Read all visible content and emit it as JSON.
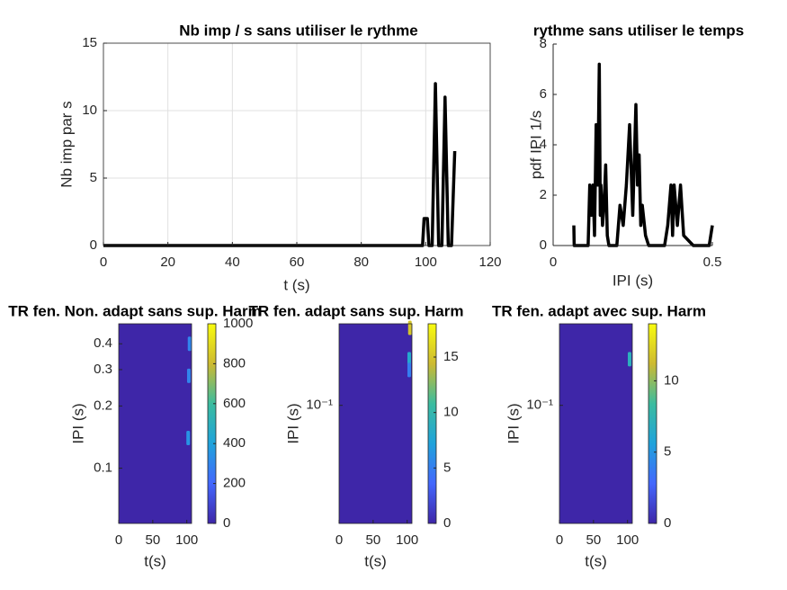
{
  "chart_data": [
    {
      "type": "line",
      "title": "Nb imp / s sans utiliser le rythme",
      "x_label": "t (s)",
      "y_label": "Nb imp par s",
      "x": [
        0,
        99,
        99.5,
        100.5,
        101,
        102,
        103,
        104,
        105,
        106,
        107,
        108,
        109
      ],
      "values": [
        0,
        0,
        2,
        2,
        0,
        0,
        12,
        0,
        0,
        11,
        0,
        0,
        7
      ],
      "color": "#000000",
      "xlim": [
        0,
        120
      ],
      "xticks": [
        0,
        20,
        40,
        60,
        80,
        100,
        120
      ],
      "ylim": [
        0,
        15
      ],
      "yticks": [
        0,
        5,
        10,
        15
      ],
      "grid": true
    },
    {
      "type": "line",
      "title": "rythme sans utiliser le temps",
      "x_label": "IPI (s)",
      "y_label": "pdf IPI 1/s",
      "x": [
        0.065,
        0.066,
        0.07,
        0.071,
        0.1,
        0.11,
        0.115,
        0.12,
        0.125,
        0.13,
        0.135,
        0.14,
        0.145,
        0.148,
        0.15,
        0.155,
        0.16,
        0.165,
        0.17,
        0.175,
        0.2,
        0.21,
        0.22,
        0.23,
        0.24,
        0.25,
        0.26,
        0.265,
        0.27,
        0.275,
        0.28,
        0.29,
        0.3,
        0.32,
        0.35,
        0.36,
        0.37,
        0.375,
        0.38,
        0.385,
        0.39,
        0.4,
        0.41,
        0.44,
        0.49,
        0.5
      ],
      "values": [
        0.8,
        0,
        0,
        0,
        0,
        0,
        2.4,
        1.2,
        2.4,
        0.4,
        4.8,
        2.4,
        7.2,
        1.2,
        2.4,
        0.8,
        1.6,
        3.2,
        0.4,
        0,
        0,
        1.6,
        0.8,
        2.4,
        4.8,
        1.2,
        5.6,
        2.4,
        3.6,
        0.8,
        1.6,
        0.4,
        0,
        0,
        0,
        0.8,
        2.4,
        0.4,
        2.4,
        1.6,
        0.8,
        2.4,
        0.4,
        0,
        0,
        0.8
      ],
      "color": "#000000",
      "xlim": [
        0,
        0.5
      ],
      "xticks": [
        0,
        0.5
      ],
      "ylim": [
        0,
        8
      ],
      "yticks": [
        0,
        2,
        4,
        6,
        8
      ],
      "grid": false
    },
    {
      "type": "heatmap",
      "title": "TR fen. Non. adapt sans sup. Harm",
      "x_label": "t(s)",
      "y_label": "IPI (s)",
      "xlim": [
        0,
        107
      ],
      "xticks": [
        0,
        50,
        100
      ],
      "ylim": [
        0.054,
        0.5
      ],
      "yticks": [
        0.1,
        0.2,
        0.3,
        0.4
      ],
      "y_scale": "log",
      "x": [
        104,
        103,
        102
      ],
      "y": [
        0.4,
        0.28,
        0.14
      ],
      "values": [
        300,
        300,
        350
      ],
      "clim": [
        0,
        1000
      ],
      "cticks": [
        0,
        200,
        400,
        600,
        800,
        1000
      ]
    },
    {
      "type": "heatmap",
      "title": "TR fen. adapt sans sup. Harm",
      "x_label": "t(s)",
      "y_label": "IPI (s)",
      "xlim": [
        0,
        107
      ],
      "xticks": [
        0,
        50,
        100
      ],
      "ylim": [
        0.017,
        0.34
      ],
      "yticks": [
        {
          "value": 0.1,
          "label": "10⁻¹"
        }
      ],
      "y_scale": "log",
      "x": [
        104,
        103,
        103
      ],
      "y": [
        0.32,
        0.2,
        0.17
      ],
      "values": [
        15,
        8,
        5
      ],
      "clim": [
        0,
        18
      ],
      "cticks": [
        0,
        5,
        10,
        15
      ]
    },
    {
      "type": "heatmap",
      "title": "TR fen. adapt avec sup. Harm",
      "x_label": "t(s)",
      "y_label": "IPI (s)",
      "xlim": [
        0,
        107
      ],
      "xticks": [
        0,
        50,
        100
      ],
      "ylim": [
        0.017,
        0.34
      ],
      "yticks": [
        {
          "value": 0.1,
          "label": "10⁻¹"
        }
      ],
      "y_scale": "log",
      "x": [
        103
      ],
      "y": [
        0.2
      ],
      "values": [
        7
      ],
      "clim": [
        0,
        14
      ],
      "cticks": [
        0,
        5,
        10
      ]
    }
  ]
}
